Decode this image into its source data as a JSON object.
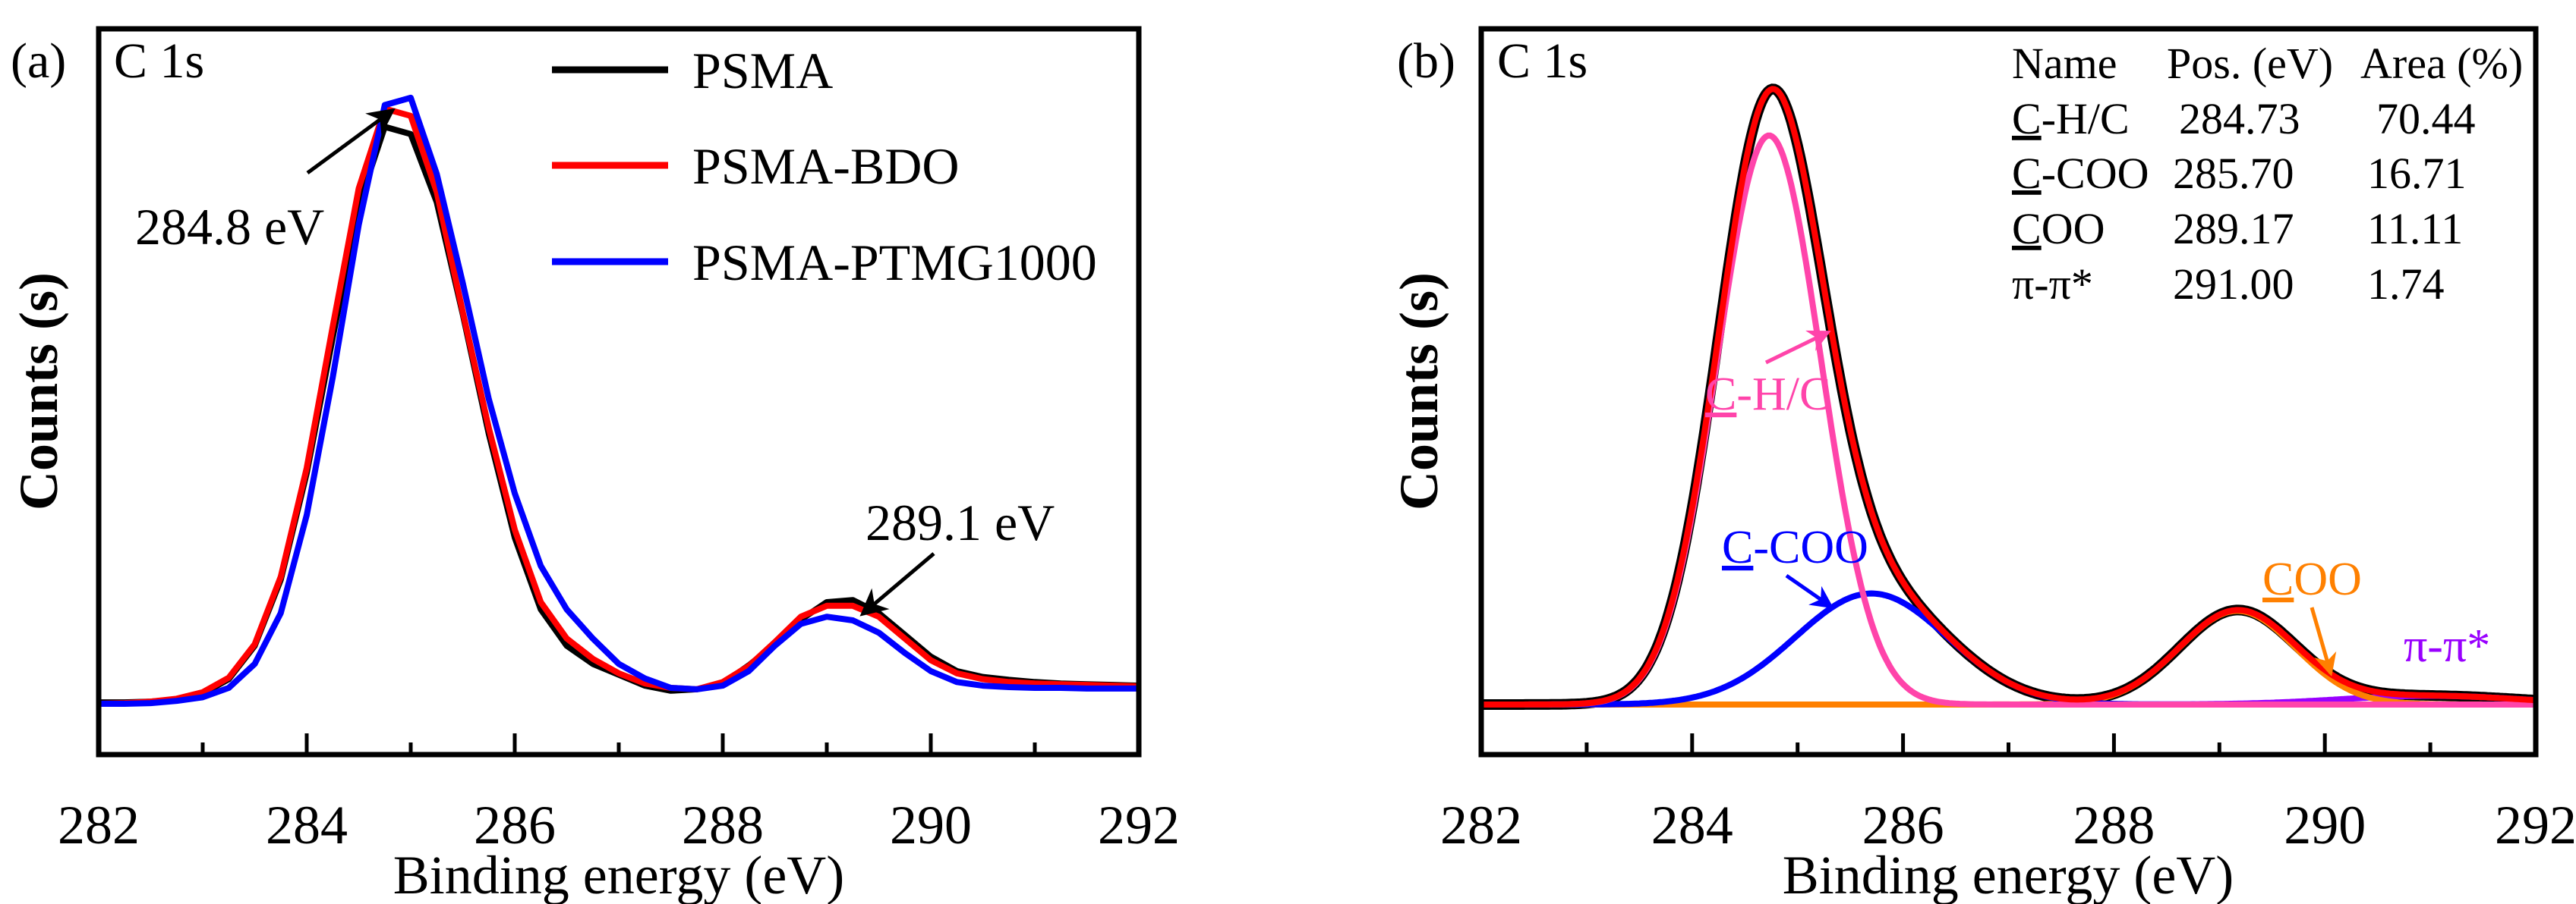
{
  "chart_data": [
    {
      "type": "line",
      "panel": "(a)",
      "title": "C 1s",
      "xlabel": "Binding energy (eV)",
      "ylabel": "Counts (s)",
      "xlim": [
        282,
        292
      ],
      "ylim": [
        0,
        1
      ],
      "xticks": [
        "282",
        "284",
        "286",
        "288",
        "290",
        "292"
      ],
      "grid": false,
      "legend": "top-right",
      "x": [
        282,
        282.25,
        282.5,
        282.75,
        283,
        283.25,
        283.5,
        283.75,
        284,
        284.25,
        284.5,
        284.75,
        285,
        285.25,
        285.5,
        285.75,
        286,
        286.25,
        286.5,
        286.75,
        287,
        287.25,
        287.5,
        287.75,
        288,
        288.25,
        288.5,
        288.75,
        289,
        289.25,
        289.5,
        289.75,
        290,
        290.25,
        290.5,
        290.75,
        291,
        291.25,
        291.5,
        291.75,
        292
      ],
      "series": [
        {
          "name": "PSMA",
          "color": "#000000",
          "values": [
            0.072,
            0.072,
            0.073,
            0.076,
            0.084,
            0.104,
            0.15,
            0.241,
            0.388,
            0.575,
            0.757,
            0.865,
            0.855,
            0.761,
            0.607,
            0.442,
            0.299,
            0.2,
            0.15,
            0.125,
            0.11,
            0.095,
            0.088,
            0.09,
            0.098,
            0.123,
            0.152,
            0.186,
            0.21,
            0.213,
            0.195,
            0.165,
            0.135,
            0.115,
            0.107,
            0.103,
            0.1,
            0.098,
            0.097,
            0.096,
            0.095
          ]
        },
        {
          "name": "PSMA-BDO",
          "color": "#ff0000",
          "values": [
            0.07,
            0.071,
            0.073,
            0.077,
            0.086,
            0.106,
            0.152,
            0.245,
            0.395,
            0.59,
            0.78,
            0.89,
            0.88,
            0.775,
            0.61,
            0.45,
            0.31,
            0.21,
            0.16,
            0.132,
            0.112,
            0.098,
            0.092,
            0.09,
            0.1,
            0.122,
            0.155,
            0.19,
            0.205,
            0.205,
            0.19,
            0.16,
            0.13,
            0.112,
            0.104,
            0.1,
            0.098,
            0.097,
            0.096,
            0.095,
            0.094
          ]
        },
        {
          "name": "PSMA-PTMG1000",
          "color": "#0000ff",
          "values": [
            0.07,
            0.07,
            0.071,
            0.074,
            0.079,
            0.092,
            0.125,
            0.195,
            0.33,
            0.52,
            0.73,
            0.895,
            0.905,
            0.8,
            0.65,
            0.49,
            0.36,
            0.26,
            0.2,
            0.16,
            0.125,
            0.105,
            0.092,
            0.09,
            0.095,
            0.115,
            0.15,
            0.18,
            0.19,
            0.185,
            0.168,
            0.14,
            0.115,
            0.1,
            0.095,
            0.093,
            0.092,
            0.092,
            0.091,
            0.091,
            0.091
          ]
        }
      ],
      "annotations": [
        {
          "text": "284.8 eV",
          "x": 284.8
        },
        {
          "text": "289.1 eV",
          "x": 289.1
        }
      ]
    },
    {
      "type": "line",
      "panel": "(b)",
      "title": "C 1s",
      "xlabel": "Binding energy (eV)",
      "ylabel": "Counts (s)",
      "xlim": [
        282,
        292
      ],
      "ylim": [
        0,
        1
      ],
      "xticks": [
        "282",
        "284",
        "286",
        "288",
        "290",
        "292"
      ],
      "grid": false,
      "baseline": 0.069,
      "raw_color": "#000000",
      "envelope_color": "#ff0000",
      "table": {
        "headers": [
          "Name",
          "Pos. (eV)",
          "Area (%)"
        ],
        "rows": [
          {
            "prefix": "C",
            "suffix": "-H/C",
            "pos": "284.73",
            "area": "70.44"
          },
          {
            "prefix": "C",
            "suffix": "-COO",
            "pos": "285.70",
            "area": "16.71"
          },
          {
            "prefix": "C",
            "suffix": "OO",
            "pos": "289.17",
            "area": "11.11"
          },
          {
            "prefix": "",
            "suffix": "π-π*",
            "pos": "291.00",
            "area": "1.74"
          }
        ]
      },
      "components": [
        {
          "name": "C-H/C",
          "label_prefix": "C",
          "label_suffix": "-H/C",
          "center": 284.73,
          "height": 0.784,
          "fwhm": 1.16,
          "color": "#ff44aa"
        },
        {
          "name": "C-COO",
          "label_prefix": "C",
          "label_suffix": "-COO",
          "center": 285.7,
          "height": 0.153,
          "fwhm": 1.7,
          "color": "#0000ff"
        },
        {
          "name": "COO",
          "label_prefix": "C",
          "label_suffix": "OO",
          "center": 289.17,
          "height": 0.129,
          "fwhm": 1.3,
          "color": "#ff8000"
        },
        {
          "name": "π-π*",
          "label_prefix": "",
          "label_suffix": "π-π*",
          "center": 291.0,
          "height": 0.012,
          "fwhm": 2.0,
          "color": "#9900ff"
        }
      ]
    }
  ]
}
